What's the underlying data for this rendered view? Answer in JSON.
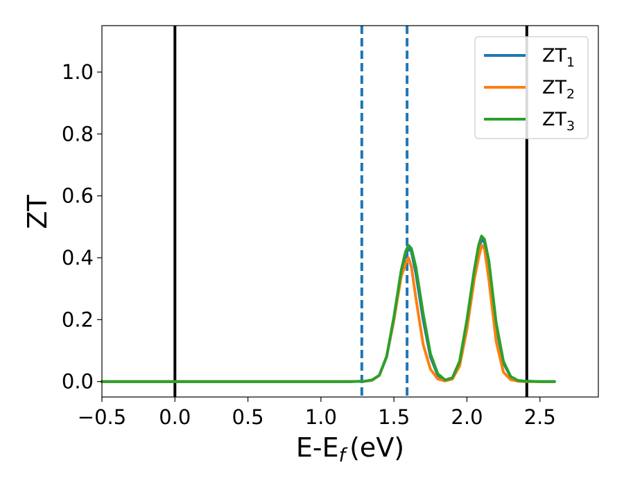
{
  "chart_data": {
    "type": "line",
    "xlabel": "E-E",
    "xlabel_sub": "f",
    "xlabel_unit": "(eV)",
    "ylabel": "ZT",
    "xlim": [
      -0.5,
      2.9
    ],
    "ylim": [
      -0.05,
      1.15
    ],
    "xticks": [
      -0.5,
      0.0,
      0.5,
      1.0,
      1.5,
      2.0,
      2.5
    ],
    "xtick_labels": [
      "−0.5",
      "0.0",
      "0.5",
      "1.0",
      "1.5",
      "2.0",
      "2.5"
    ],
    "yticks": [
      0.0,
      0.2,
      0.4,
      0.6,
      0.8,
      1.0
    ],
    "ytick_labels": [
      "0.0",
      "0.2",
      "0.4",
      "0.6",
      "0.8",
      "1.0"
    ],
    "grid": false,
    "legend_position": "top-right",
    "vertical_lines": [
      {
        "x": 0.0,
        "style": "solid",
        "color": "#000000"
      },
      {
        "x": 2.41,
        "style": "solid",
        "color": "#000000"
      },
      {
        "x": 1.28,
        "style": "dashed",
        "color": "#1f77b4"
      },
      {
        "x": 1.59,
        "style": "dashed",
        "color": "#1f77b4"
      }
    ],
    "x": [
      -0.5,
      1.2,
      1.3,
      1.35,
      1.4,
      1.45,
      1.5,
      1.55,
      1.58,
      1.6,
      1.62,
      1.65,
      1.7,
      1.75,
      1.8,
      1.85,
      1.9,
      1.95,
      2.0,
      2.05,
      2.08,
      2.1,
      2.12,
      2.15,
      2.2,
      2.25,
      2.3,
      2.35,
      2.4,
      2.5,
      2.6
    ],
    "series": [
      {
        "name": "ZT",
        "name_sub": "1",
        "color": "#1f77b4",
        "values": [
          0,
          0,
          0.001,
          0.004,
          0.02,
          0.08,
          0.2,
          0.35,
          0.41,
          0.43,
          0.42,
          0.35,
          0.2,
          0.08,
          0.02,
          0.004,
          0.01,
          0.06,
          0.19,
          0.35,
          0.42,
          0.46,
          0.45,
          0.38,
          0.18,
          0.06,
          0.015,
          0.003,
          0.001,
          0,
          0
        ]
      },
      {
        "name": "ZT",
        "name_sub": "2",
        "color": "#ff7f0e",
        "values": [
          0,
          0,
          0.001,
          0.004,
          0.02,
          0.08,
          0.2,
          0.34,
          0.38,
          0.4,
          0.37,
          0.27,
          0.12,
          0.04,
          0.008,
          0.002,
          0.008,
          0.05,
          0.17,
          0.33,
          0.4,
          0.44,
          0.43,
          0.33,
          0.13,
          0.03,
          0.006,
          0.001,
          0,
          0,
          0
        ]
      },
      {
        "name": "ZT",
        "name_sub": "3",
        "color": "#2ca02c",
        "values": [
          0,
          0,
          0.001,
          0.005,
          0.02,
          0.08,
          0.21,
          0.36,
          0.42,
          0.44,
          0.43,
          0.37,
          0.22,
          0.09,
          0.025,
          0.005,
          0.012,
          0.065,
          0.2,
          0.36,
          0.44,
          0.47,
          0.46,
          0.39,
          0.19,
          0.065,
          0.016,
          0.003,
          0.001,
          0,
          0
        ]
      }
    ]
  }
}
